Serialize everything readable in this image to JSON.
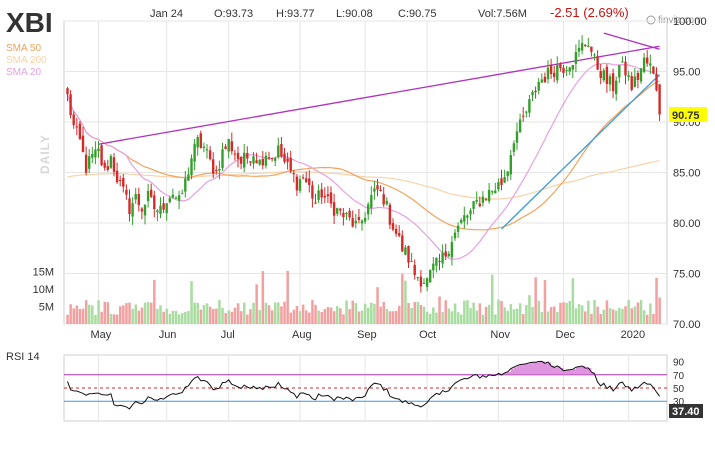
{
  "header": {
    "ticker": "XBI",
    "date": "Jan 24",
    "open": "O:93.73",
    "high": "H:93.77",
    "low": "L:90.08",
    "close": "C:90.75",
    "volume": "Vol:7.56M",
    "change": "-2.51 (2.69%)",
    "watermark": "finviz.com",
    "period": "DAILY"
  },
  "legend": [
    {
      "label": "SMA 50",
      "color": "#f2a35c"
    },
    {
      "label": "SMA 200",
      "color": "#f8d3a8"
    },
    {
      "label": "SMA 20",
      "color": "#e8a0e0"
    }
  ],
  "last_price_label": "90.75",
  "colors": {
    "up": "#33a02c",
    "down": "#d42a2a",
    "vol_up": "#a8dca0",
    "vol_down": "#f2a0a0",
    "sma20": "#e8a0e0",
    "sma50": "#f2a35c",
    "sma200": "#f8d3a8",
    "trend_purple": "#b030c0",
    "trend_blue": "#3b9ad8",
    "grid": "#e6e6e6",
    "rsi_line": "#111111",
    "rsi_fill": "#d77ad7"
  },
  "chart_data": [
    {
      "type": "candlestick",
      "title": "",
      "price_axis": {
        "ticks": [
          70,
          75,
          80,
          85,
          90,
          95,
          100
        ],
        "ylim": [
          70,
          100
        ]
      },
      "volume_axis": {
        "ticks": [
          "5M",
          "10M",
          "15M"
        ],
        "ylim_millions": [
          0,
          20
        ]
      },
      "month_labels": [
        "May",
        "Jun",
        "Jul",
        "Aug",
        "Sep",
        "Oct",
        "Nov",
        "Dec",
        "2020"
      ],
      "month_start_index": [
        10,
        32,
        52,
        75,
        96,
        116,
        139,
        160,
        181
      ],
      "close_anchors": [
        [
          0,
          92.5
        ],
        [
          2,
          89.5
        ],
        [
          4,
          88.0
        ],
        [
          6,
          85.5
        ],
        [
          8,
          86.5
        ],
        [
          10,
          87.0
        ],
        [
          12,
          85.0
        ],
        [
          14,
          86.5
        ],
        [
          16,
          84.5
        ],
        [
          18,
          83.0
        ],
        [
          20,
          81.5
        ],
        [
          22,
          82.5
        ],
        [
          24,
          81.5
        ],
        [
          26,
          82.5
        ],
        [
          28,
          81.5
        ],
        [
          30,
          81.2
        ],
        [
          32,
          82.5
        ],
        [
          34,
          83.0
        ],
        [
          36,
          82.0
        ],
        [
          38,
          84.0
        ],
        [
          40,
          86.5
        ],
        [
          42,
          88.0
        ],
        [
          44,
          87.5
        ],
        [
          46,
          86.0
        ],
        [
          48,
          85.0
        ],
        [
          50,
          87.0
        ],
        [
          52,
          88.0
        ],
        [
          54,
          87.0
        ],
        [
          56,
          86.0
        ],
        [
          58,
          86.5
        ],
        [
          60,
          87.0
        ],
        [
          62,
          86.0
        ],
        [
          64,
          87.0
        ],
        [
          66,
          86.5
        ],
        [
          68,
          87.2
        ],
        [
          70,
          86.0
        ],
        [
          72,
          85.0
        ],
        [
          74,
          84.0
        ],
        [
          76,
          84.5
        ],
        [
          78,
          83.5
        ],
        [
          80,
          82.0
        ],
        [
          82,
          83.0
        ],
        [
          84,
          82.0
        ],
        [
          86,
          81.5
        ],
        [
          88,
          81.0
        ],
        [
          90,
          80.5
        ],
        [
          92,
          80.0
        ],
        [
          94,
          79.5
        ],
        [
          96,
          81.0
        ],
        [
          98,
          82.5
        ],
        [
          100,
          83.2
        ],
        [
          102,
          82.5
        ],
        [
          104,
          80.5
        ],
        [
          106,
          79.0
        ],
        [
          108,
          77.5
        ],
        [
          110,
          76.5
        ],
        [
          112,
          75.0
        ],
        [
          114,
          74.5
        ],
        [
          116,
          74.2
        ],
        [
          118,
          75.5
        ],
        [
          120,
          76.0
        ],
        [
          122,
          77.0
        ],
        [
          124,
          78.5
        ],
        [
          126,
          79.5
        ],
        [
          128,
          80.5
        ],
        [
          130,
          81.0
        ],
        [
          132,
          82.0
        ],
        [
          134,
          82.5
        ],
        [
          136,
          83.0
        ],
        [
          138,
          83.5
        ],
        [
          140,
          84.0
        ],
        [
          142,
          85.5
        ],
        [
          144,
          88.5
        ],
        [
          146,
          89.5
        ],
        [
          148,
          91.0
        ],
        [
          150,
          92.5
        ],
        [
          152,
          94.0
        ],
        [
          154,
          94.5
        ],
        [
          156,
          95.0
        ],
        [
          158,
          95.5
        ],
        [
          160,
          95.5
        ],
        [
          162,
          96.0
        ],
        [
          164,
          96.5
        ],
        [
          166,
          97.5
        ],
        [
          168,
          98.0
        ],
        [
          170,
          96.0
        ],
        [
          172,
          95.0
        ],
        [
          174,
          94.0
        ],
        [
          176,
          93.5
        ],
        [
          178,
          95.5
        ],
        [
          180,
          95.0
        ],
        [
          182,
          93.5
        ],
        [
          184,
          94.5
        ],
        [
          186,
          96.0
        ],
        [
          188,
          95.5
        ],
        [
          190,
          93.5
        ],
        [
          191,
          90.75
        ]
      ],
      "last_bar": {
        "open": 93.73,
        "high": 93.77,
        "low": 90.08,
        "close": 90.75,
        "volume_millions": 7.56
      },
      "sma_labels": [
        "SMA 50",
        "SMA 200",
        "SMA 20"
      ],
      "trendlines": [
        {
          "name": "upper",
          "from": [
            10,
            87.8
          ],
          "to": [
            191,
            97.5
          ]
        },
        {
          "name": "declining top",
          "from": [
            173,
            98.8
          ],
          "to": [
            191,
            97.2
          ]
        },
        {
          "name": "rising support",
          "from": [
            140,
            79.4
          ],
          "to": [
            191,
            94.7
          ]
        }
      ]
    },
    {
      "type": "line",
      "title": "RSI 14",
      "ylim": [
        0,
        100
      ],
      "ticks": [
        30,
        50,
        70,
        90
      ],
      "levels": [
        30,
        50,
        70
      ],
      "last_value": "37.40",
      "series": [
        {
          "name": "RSI 14",
          "values_note": "computed from closes"
        }
      ]
    }
  ]
}
